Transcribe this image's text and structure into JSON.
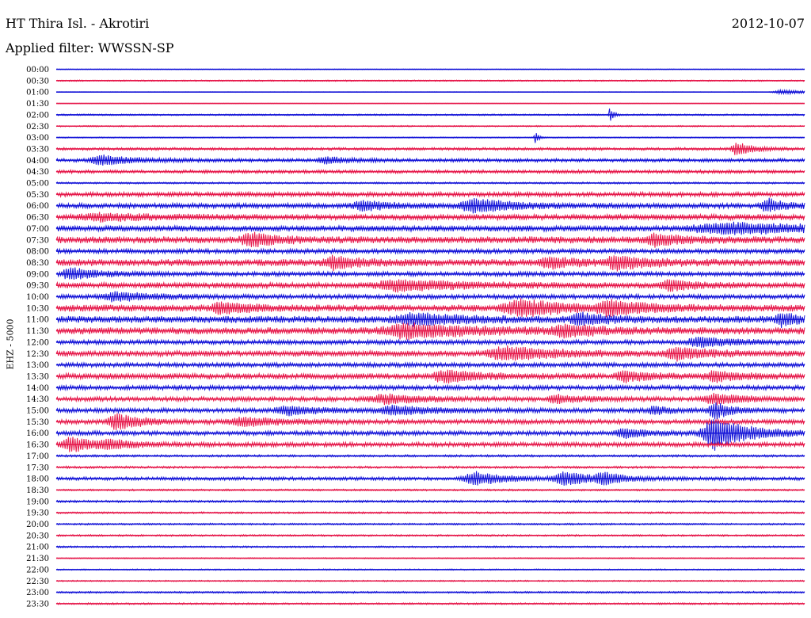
{
  "header": {
    "station": "HT Thira Isl. - Akrotiri",
    "date": "2012-10-07",
    "filter": "Applied filter: WWSSN-SP"
  },
  "chart_data": {
    "type": "line",
    "ylabel": "EHZ - 5000",
    "colors": {
      "even": "#1515d8",
      "odd": "#e61a4c"
    },
    "rows": [
      "00:00",
      "00:30",
      "01:00",
      "01:30",
      "02:00",
      "02:30",
      "03:00",
      "03:30",
      "04:00",
      "04:30",
      "05:00",
      "05:30",
      "06:00",
      "06:30",
      "07:00",
      "07:30",
      "08:00",
      "08:30",
      "09:00",
      "09:30",
      "10:00",
      "10:30",
      "11:00",
      "11:30",
      "12:00",
      "12:30",
      "13:00",
      "13:30",
      "14:00",
      "14:30",
      "15:00",
      "15:30",
      "16:00",
      "16:30",
      "17:00",
      "17:30",
      "18:00",
      "18:30",
      "19:00",
      "19:30",
      "20:00",
      "20:30",
      "21:00",
      "21:30",
      "22:00",
      "22:30",
      "23:00",
      "23:30"
    ],
    "activity": [
      0.3,
      0.6,
      0.3,
      0.2,
      0.7,
      0.6,
      0.5,
      1.2,
      1.5,
      1.5,
      0.8,
      2.0,
      2.2,
      2.5,
      2.5,
      3.0,
      2.0,
      3.0,
      2.0,
      2.5,
      2.0,
      3.0,
      3.0,
      3.0,
      2.0,
      2.5,
      2.0,
      2.5,
      2.0,
      2.0,
      2.0,
      2.0,
      2.0,
      2.0,
      1.0,
      1.0,
      1.5,
      0.8,
      1.0,
      0.8,
      0.8,
      0.8,
      0.8,
      0.5,
      0.6,
      0.6,
      0.8,
      0.8
    ],
    "events": [
      {
        "row": 2,
        "t": 0.97,
        "amp": 3,
        "w": 0.03
      },
      {
        "row": 4,
        "t": 0.74,
        "amp": 10,
        "w": 0.004
      },
      {
        "row": 6,
        "t": 0.64,
        "amp": 8,
        "w": 0.004
      },
      {
        "row": 7,
        "t": 0.91,
        "amp": 8,
        "w": 0.02
      },
      {
        "row": 8,
        "t": 0.06,
        "amp": 6,
        "w": 0.04
      },
      {
        "row": 8,
        "t": 0.36,
        "amp": 4,
        "w": 0.03
      },
      {
        "row": 12,
        "t": 0.41,
        "amp": 6,
        "w": 0.03
      },
      {
        "row": 12,
        "t": 0.56,
        "amp": 8,
        "w": 0.05
      },
      {
        "row": 12,
        "t": 0.95,
        "amp": 8,
        "w": 0.02
      },
      {
        "row": 13,
        "t": 0.06,
        "amp": 4,
        "w": 0.06
      },
      {
        "row": 14,
        "t": 0.9,
        "amp": 6,
        "w": 0.12
      },
      {
        "row": 15,
        "t": 0.26,
        "amp": 8,
        "w": 0.03
      },
      {
        "row": 15,
        "t": 0.8,
        "amp": 7,
        "w": 0.03
      },
      {
        "row": 17,
        "t": 0.37,
        "amp": 7,
        "w": 0.03
      },
      {
        "row": 17,
        "t": 0.66,
        "amp": 6,
        "w": 0.03
      },
      {
        "row": 17,
        "t": 0.75,
        "amp": 7,
        "w": 0.04
      },
      {
        "row": 18,
        "t": 0.02,
        "amp": 7,
        "w": 0.03
      },
      {
        "row": 19,
        "t": 0.46,
        "amp": 6,
        "w": 0.08
      },
      {
        "row": 19,
        "t": 0.82,
        "amp": 6,
        "w": 0.03
      },
      {
        "row": 20,
        "t": 0.08,
        "amp": 5,
        "w": 0.05
      },
      {
        "row": 21,
        "t": 0.22,
        "amp": 7,
        "w": 0.03
      },
      {
        "row": 21,
        "t": 0.62,
        "amp": 9,
        "w": 0.06
      },
      {
        "row": 21,
        "t": 0.74,
        "amp": 8,
        "w": 0.04
      },
      {
        "row": 22,
        "t": 0.48,
        "amp": 6,
        "w": 0.06
      },
      {
        "row": 22,
        "t": 0.7,
        "amp": 6,
        "w": 0.03
      },
      {
        "row": 22,
        "t": 0.97,
        "amp": 8,
        "w": 0.02
      },
      {
        "row": 23,
        "t": 0.47,
        "amp": 8,
        "w": 0.08
      },
      {
        "row": 23,
        "t": 0.68,
        "amp": 6,
        "w": 0.04
      },
      {
        "row": 24,
        "t": 0.86,
        "amp": 6,
        "w": 0.04
      },
      {
        "row": 25,
        "t": 0.6,
        "amp": 8,
        "w": 0.06
      },
      {
        "row": 25,
        "t": 0.83,
        "amp": 7,
        "w": 0.04
      },
      {
        "row": 27,
        "t": 0.52,
        "amp": 7,
        "w": 0.04
      },
      {
        "row": 27,
        "t": 0.76,
        "amp": 6,
        "w": 0.03
      },
      {
        "row": 27,
        "t": 0.88,
        "amp": 6,
        "w": 0.03
      },
      {
        "row": 29,
        "t": 0.44,
        "amp": 5,
        "w": 0.05
      },
      {
        "row": 29,
        "t": 0.67,
        "amp": 5,
        "w": 0.03
      },
      {
        "row": 29,
        "t": 0.88,
        "amp": 6,
        "w": 0.04
      },
      {
        "row": 30,
        "t": 0.31,
        "amp": 5,
        "w": 0.04
      },
      {
        "row": 30,
        "t": 0.45,
        "amp": 5,
        "w": 0.05
      },
      {
        "row": 30,
        "t": 0.8,
        "amp": 5,
        "w": 0.02
      },
      {
        "row": 30,
        "t": 0.88,
        "amp": 10,
        "w": 0.02
      },
      {
        "row": 31,
        "t": 0.08,
        "amp": 10,
        "w": 0.03
      },
      {
        "row": 31,
        "t": 0.25,
        "amp": 5,
        "w": 0.05
      },
      {
        "row": 32,
        "t": 0.76,
        "amp": 5,
        "w": 0.03
      },
      {
        "row": 32,
        "t": 0.88,
        "amp": 20,
        "w": 0.04
      },
      {
        "row": 33,
        "t": 0.02,
        "amp": 9,
        "w": 0.03
      },
      {
        "row": 33,
        "t": 0.07,
        "amp": 4,
        "w": 0.03
      },
      {
        "row": 36,
        "t": 0.56,
        "amp": 8,
        "w": 0.04
      },
      {
        "row": 36,
        "t": 0.68,
        "amp": 8,
        "w": 0.04
      },
      {
        "row": 36,
        "t": 0.73,
        "amp": 6,
        "w": 0.02
      }
    ]
  }
}
